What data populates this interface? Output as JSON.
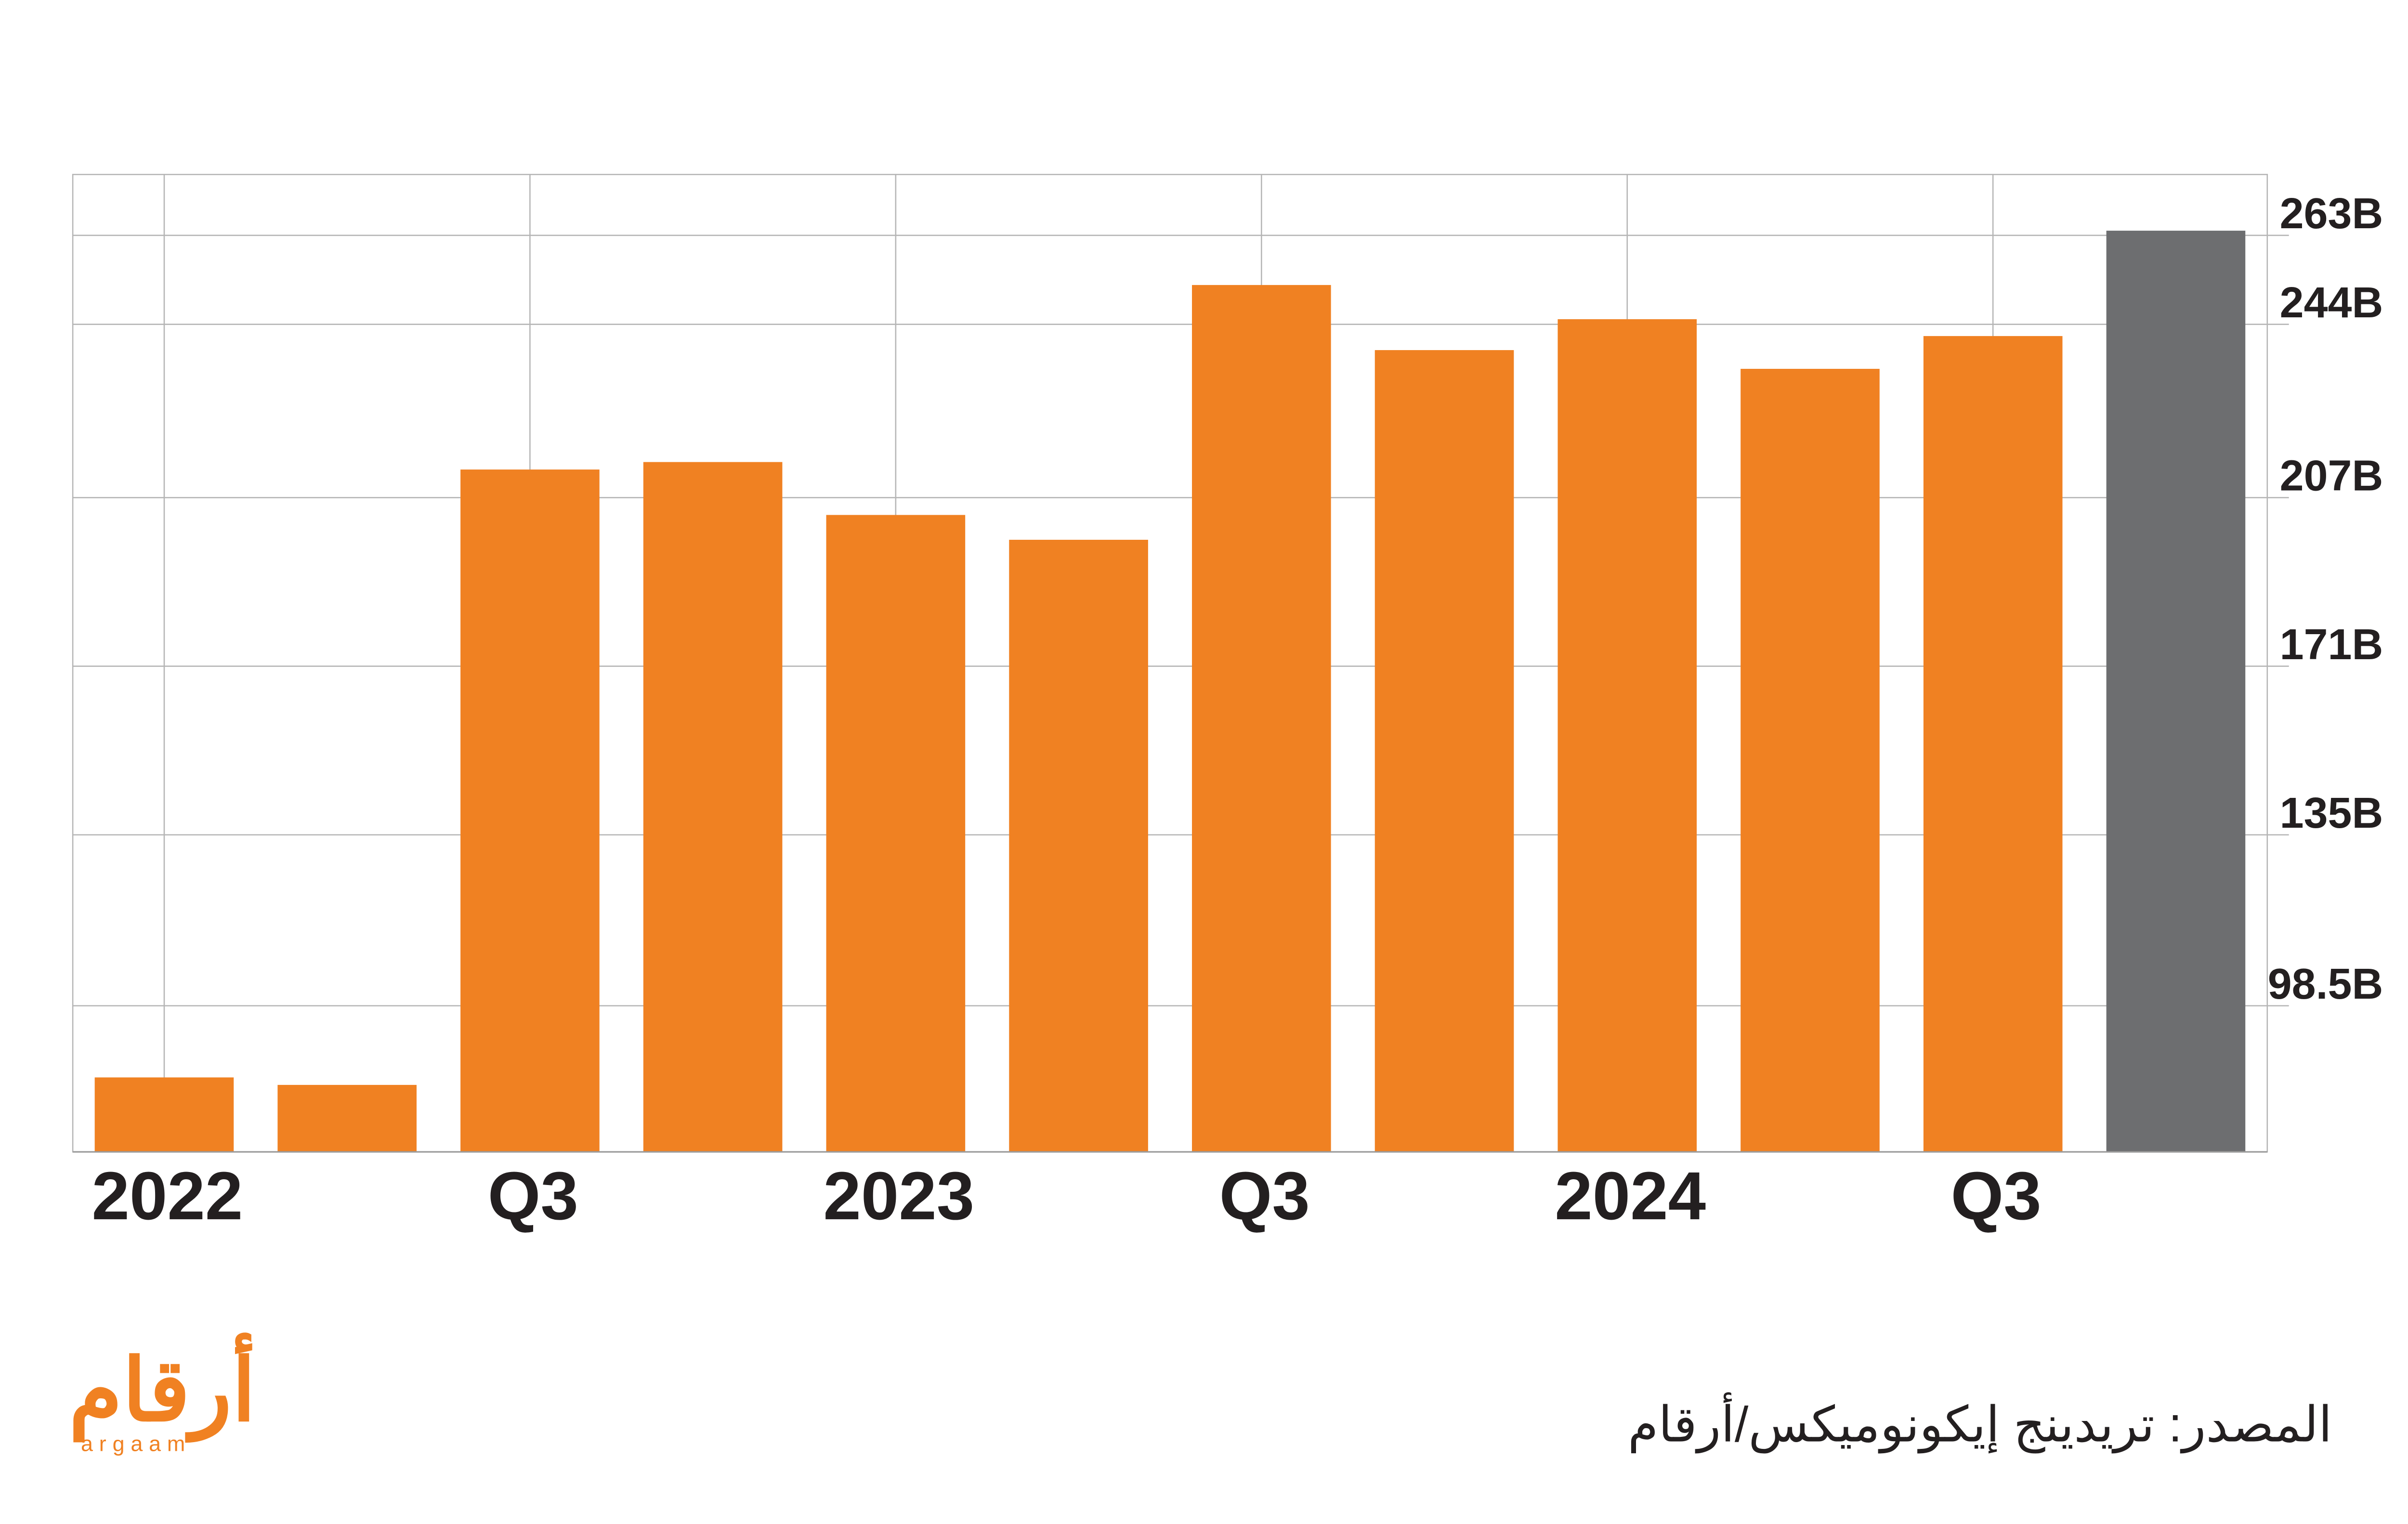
{
  "chart_data": {
    "type": "bar",
    "categories": [
      "2022",
      null,
      "Q3",
      null,
      "2023",
      null,
      "Q3",
      null,
      "2024",
      null,
      "Q3",
      null
    ],
    "values": [
      83.2,
      81.6,
      213,
      214.6,
      203.3,
      198,
      252.4,
      238.5,
      245.1,
      234.5,
      241.5,
      264
    ],
    "colors": [
      "#f08122",
      "#f08122",
      "#f08122",
      "#f08122",
      "#f08122",
      "#f08122",
      "#f08122",
      "#f08122",
      "#f08122",
      "#f08122",
      "#f08122",
      "#6d6e70"
    ],
    "ylim": [
      67.3,
      276
    ],
    "yticks": [
      {
        "value": 98.5,
        "label": "98.5B"
      },
      {
        "value": 135,
        "label": "135B"
      },
      {
        "value": 171,
        "label": "171B"
      },
      {
        "value": 207,
        "label": "207B"
      },
      {
        "value": 244,
        "label": "244B"
      },
      {
        "value": 263,
        "label": "263B"
      }
    ],
    "grid": true
  },
  "source": "المصدر: تريدينج إيكونوميكس/أرقام",
  "logo": {
    "arabic": "أرقام",
    "latin": "argaam"
  }
}
